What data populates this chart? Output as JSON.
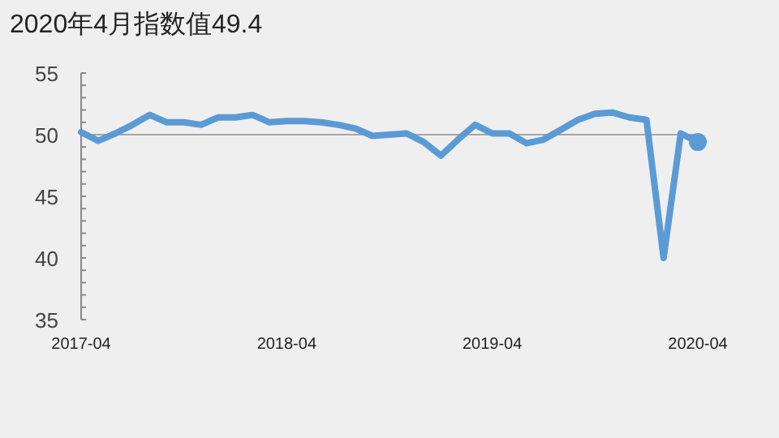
{
  "chart_data": {
    "type": "line",
    "title": "2020年4月指数值49.4",
    "x": [
      "2017-04",
      "2017-05",
      "2017-06",
      "2017-07",
      "2017-08",
      "2017-09",
      "2017-10",
      "2017-11",
      "2017-12",
      "2018-01",
      "2018-02",
      "2018-03",
      "2018-04",
      "2018-05",
      "2018-06",
      "2018-07",
      "2018-08",
      "2018-09",
      "2018-10",
      "2018-11",
      "2018-12",
      "2019-01",
      "2019-02",
      "2019-03",
      "2019-04",
      "2019-05",
      "2019-06",
      "2019-07",
      "2019-08",
      "2019-09",
      "2019-10",
      "2019-11",
      "2019-12",
      "2020-01",
      "2020-02",
      "2020-03",
      "2020-04"
    ],
    "series": [
      {
        "color": "#5b9bd5",
        "marker": "none",
        "values": [
          50.2,
          49.5,
          50.1,
          50.8,
          51.6,
          51.0,
          51.0,
          50.8,
          51.4,
          51.4,
          51.6,
          51.0,
          51.1,
          51.1,
          51.0,
          50.8,
          50.5,
          49.9,
          50.0,
          50.1,
          49.4,
          48.3,
          49.6,
          50.8,
          50.1,
          50.1,
          49.3,
          49.6,
          50.4,
          51.2,
          51.7,
          51.8,
          51.4,
          51.2,
          40.0,
          50.1,
          49.4
        ]
      },
      {
        "type": "scatter",
        "color": "#5b9bd5",
        "marker": "circle",
        "x": [
          "2020-04"
        ],
        "values": [
          49.4
        ]
      }
    ],
    "xlim": [
      "2017-04",
      "2020-04"
    ],
    "xticks": [
      {
        "value": "2017-04",
        "label": "2017-04"
      },
      {
        "value": "2018-04",
        "label": "2018-04"
      },
      {
        "value": "2019-04",
        "label": "2019-04"
      },
      {
        "value": "2020-04",
        "label": "2020-04"
      }
    ],
    "ylim": [
      35,
      55
    ],
    "yticks": [
      35,
      {
        "value": 36,
        "label": null
      },
      {
        "value": 37,
        "label": null
      },
      {
        "value": 38,
        "label": null
      },
      {
        "value": 39,
        "label": null
      },
      40,
      {
        "value": 41,
        "label": null
      },
      {
        "value": 42,
        "label": null
      },
      {
        "value": 43,
        "label": null
      },
      {
        "value": 44,
        "label": null
      },
      45,
      {
        "value": 46,
        "label": null
      },
      {
        "value": 47,
        "label": null
      },
      {
        "value": 48,
        "label": null
      },
      {
        "value": 49,
        "label": null
      },
      50,
      {
        "value": 51,
        "label": null
      },
      {
        "value": 52,
        "label": null
      },
      {
        "value": 53,
        "label": null
      },
      {
        "value": 54,
        "label": null
      },
      55
    ],
    "ref_lines": [
      {
        "axis": "y",
        "value": 50,
        "color": "#a6a6a6"
      }
    ]
  }
}
